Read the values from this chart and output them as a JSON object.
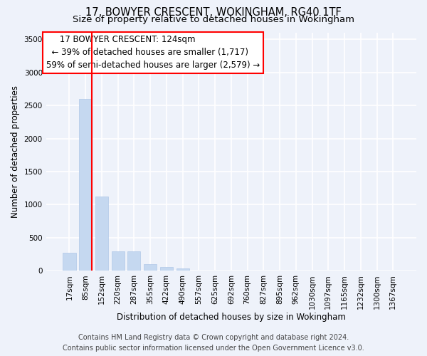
{
  "title": "17, BOWYER CRESCENT, WOKINGHAM, RG40 1TF",
  "subtitle": "Size of property relative to detached houses in Wokingham",
  "xlabel": "Distribution of detached houses by size in Wokingham",
  "ylabel": "Number of detached properties",
  "bar_color": "#c5d8f0",
  "bar_edge_color": "#b0c8e8",
  "background_color": "#eef2fa",
  "grid_color": "#ffffff",
  "categories": [
    "17sqm",
    "85sqm",
    "152sqm",
    "220sqm",
    "287sqm",
    "355sqm",
    "422sqm",
    "490sqm",
    "557sqm",
    "625sqm",
    "692sqm",
    "760sqm",
    "827sqm",
    "895sqm",
    "962sqm",
    "1030sqm",
    "1097sqm",
    "1165sqm",
    "1232sqm",
    "1300sqm",
    "1367sqm"
  ],
  "values": [
    270,
    2600,
    1120,
    290,
    290,
    100,
    60,
    40,
    0,
    0,
    0,
    0,
    0,
    0,
    0,
    0,
    0,
    0,
    0,
    0,
    0
  ],
  "ylim": [
    0,
    3600
  ],
  "yticks": [
    0,
    500,
    1000,
    1500,
    2000,
    2500,
    3000,
    3500
  ],
  "annotation_line1": "     17 BOWYER CRESCENT: 124sqm",
  "annotation_line2": "  ← 39% of detached houses are smaller (1,717)",
  "annotation_line3": "59% of semi-detached houses are larger (2,579) →",
  "footer_line1": "Contains HM Land Registry data © Crown copyright and database right 2024.",
  "footer_line2": "Contains public sector information licensed under the Open Government Licence v3.0.",
  "title_fontsize": 10.5,
  "subtitle_fontsize": 9.5,
  "annotation_fontsize": 8.5,
  "footer_fontsize": 7,
  "tick_fontsize": 7.5,
  "ylabel_fontsize": 8.5,
  "xlabel_fontsize": 8.5
}
